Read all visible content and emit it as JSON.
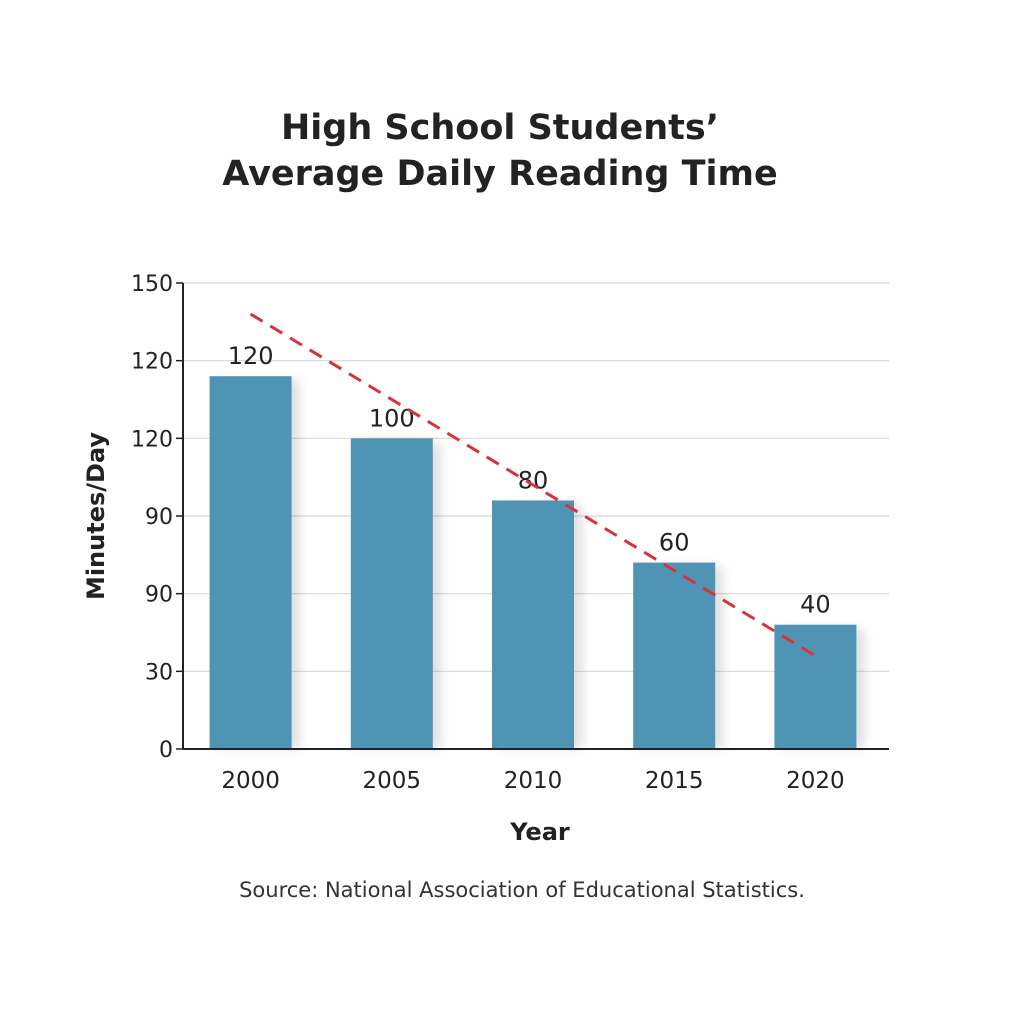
{
  "chart_data": {
    "type": "bar",
    "title": [
      "High School Students’",
      "Average Daily Reading Time"
    ],
    "xlabel": "Year",
    "ylabel": "Minutes/Day",
    "categories": [
      "2000",
      "2005",
      "2010",
      "2015",
      "2020"
    ],
    "values": [
      120,
      100,
      80,
      60,
      40
    ],
    "data_labels": [
      "120",
      "100",
      "80",
      "60",
      "40"
    ],
    "ytick_labels": [
      "0",
      "30",
      "90",
      "90",
      "120",
      "120",
      "150"
    ],
    "ylim": [
      0,
      150
    ],
    "grid": true,
    "trend_line": {
      "style": "dashed",
      "from": {
        "x": "2000",
        "y": 140
      },
      "to": {
        "x": "2020",
        "y": 30
      }
    },
    "source": "Source: National Association of Educational Statistics.",
    "colors": {
      "bar": "#4f93b5",
      "trend": "#d9333a",
      "grid": "#d8d8d8",
      "axis": "#222222"
    }
  }
}
